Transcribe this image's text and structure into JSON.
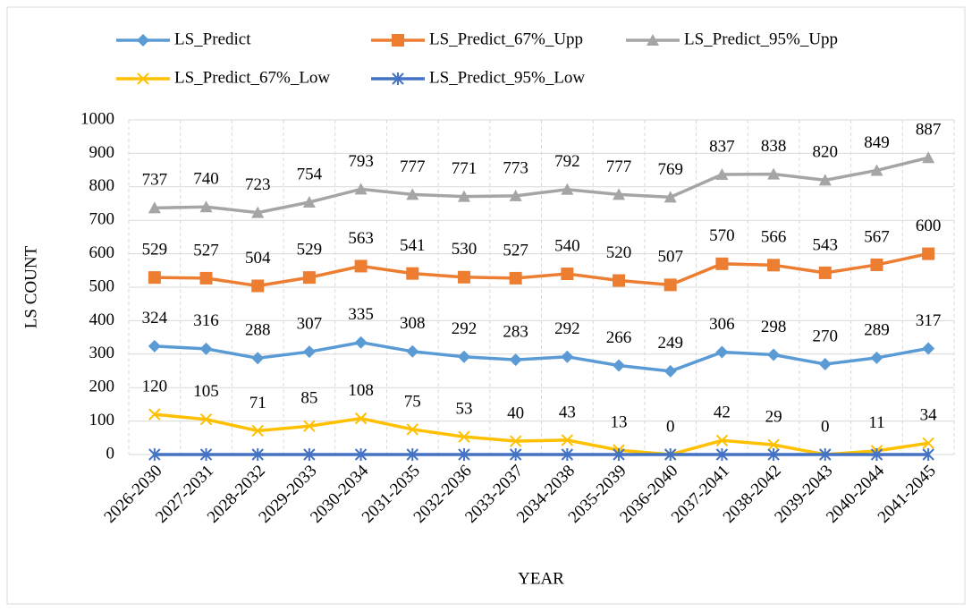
{
  "chart_data": {
    "type": "line",
    "x_label": "YEAR",
    "y_label": "LS COUNT",
    "categories": [
      "2026-2030",
      "2027-2031",
      "2028-2032",
      "2029-2033",
      "2030-2034",
      "2031-2035",
      "2032-2036",
      "2033-2037",
      "2034-2038",
      "2035-2039",
      "2036-2040",
      "2037-2041",
      "2038-2042",
      "2039-2043",
      "2040-2044",
      "2041-2045"
    ],
    "series": [
      {
        "name": "LS_Predict",
        "color": "#5b9bd5",
        "marker": "diamond",
        "data_labels": true,
        "values": [
          324,
          316,
          288,
          307,
          335,
          308,
          292,
          283,
          292,
          266,
          249,
          306,
          298,
          270,
          289,
          317
        ]
      },
      {
        "name": "LS_Predict_67%_Upp",
        "color": "#ed7d31",
        "marker": "square",
        "data_labels": true,
        "values": [
          529,
          527,
          504,
          529,
          563,
          541,
          530,
          527,
          540,
          520,
          507,
          570,
          566,
          543,
          567,
          600
        ]
      },
      {
        "name": "LS_Predict_95%_Upp",
        "color": "#a5a5a5",
        "marker": "triangle",
        "data_labels": true,
        "values": [
          737,
          740,
          723,
          754,
          793,
          777,
          771,
          773,
          792,
          777,
          769,
          837,
          838,
          820,
          849,
          887
        ]
      },
      {
        "name": "LS_Predict_67%_Low",
        "color": "#ffc000",
        "marker": "x",
        "data_labels": true,
        "values": [
          120,
          105,
          71,
          85,
          108,
          75,
          53,
          40,
          43,
          13,
          0,
          42,
          29,
          0,
          11,
          34
        ]
      },
      {
        "name": "LS_Predict_95%_Low",
        "color": "#4472c4",
        "marker": "star",
        "data_labels": false,
        "values": [
          0,
          0,
          0,
          0,
          0,
          0,
          0,
          0,
          0,
          0,
          0,
          0,
          0,
          0,
          0,
          0
        ]
      }
    ],
    "ylim": [
      0,
      1000
    ],
    "yticks": [
      0,
      100,
      200,
      300,
      400,
      500,
      600,
      700,
      800,
      900,
      1000
    ],
    "grid": true
  }
}
